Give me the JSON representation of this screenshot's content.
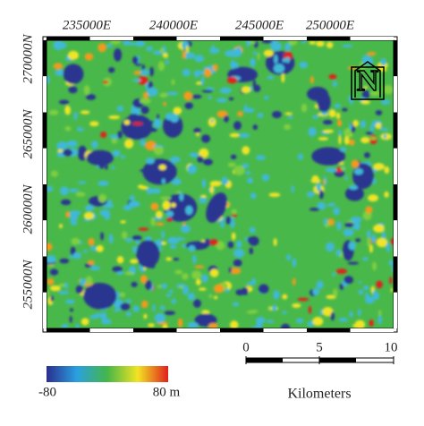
{
  "map": {
    "x_labels": [
      "235000E",
      "240000E",
      "245000E",
      "250000E"
    ],
    "y_labels": [
      "270000N",
      "265000N",
      "260000N",
      "255000N"
    ],
    "north_label": "N",
    "colorbar": {
      "min_label": "-80",
      "max_label": "80 m"
    },
    "scale_bar": {
      "labels": [
        "0",
        "5",
        "10"
      ],
      "unit": "Kilometers"
    }
  }
}
